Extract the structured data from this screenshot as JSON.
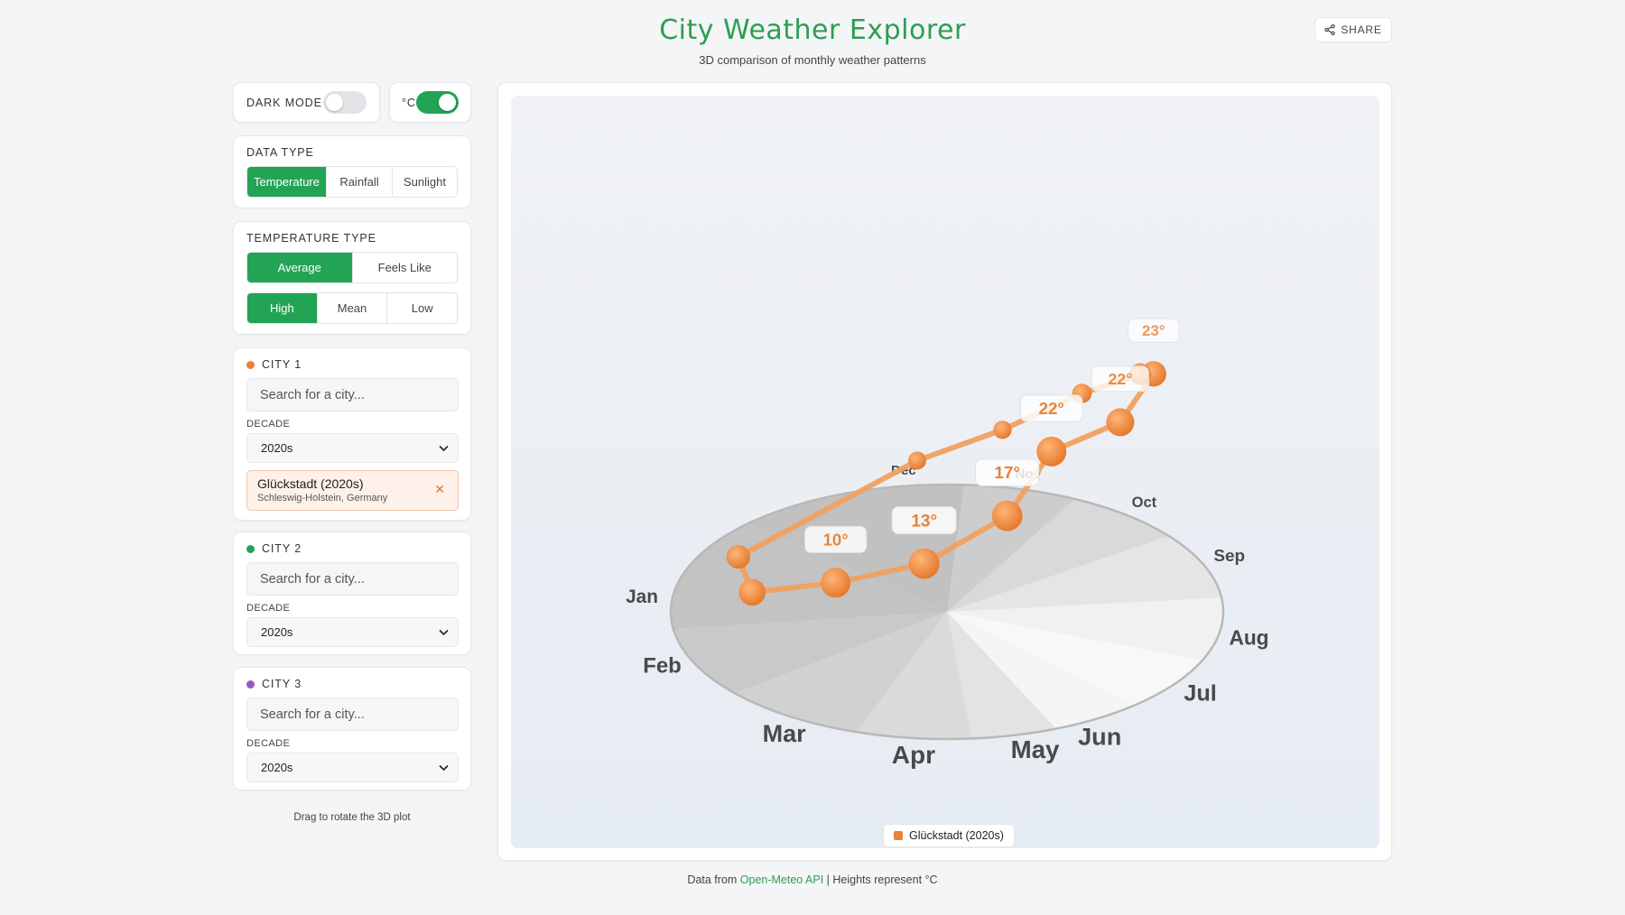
{
  "header": {
    "title": "City Weather Explorer",
    "subtitle": "3D comparison of monthly weather patterns",
    "share_label": "SHARE"
  },
  "controls": {
    "dark_mode_label": "DARK MODE",
    "dark_mode_on": false,
    "unit_label": "°C",
    "unit_celsius_on": true
  },
  "data_type": {
    "label": "DATA TYPE",
    "options": [
      "Temperature",
      "Rainfall",
      "Sunlight"
    ],
    "selected": "Temperature"
  },
  "temperature_type": {
    "label": "TEMPERATURE TYPE",
    "mode_options": [
      "Average",
      "Feels Like"
    ],
    "mode_selected": "Average",
    "level_options": [
      "High",
      "Mean",
      "Low"
    ],
    "level_selected": "High"
  },
  "cities": [
    {
      "label": "CITY 1",
      "color": "#e6823b",
      "search_placeholder": "Search for a city...",
      "decade_label": "DECADE",
      "decade": "2020s",
      "selected": {
        "name": "Glückstadt (2020s)",
        "region": "Schleswig-Holstein, Germany"
      }
    },
    {
      "label": "CITY 2",
      "color": "#23a455",
      "search_placeholder": "Search for a city...",
      "decade_label": "DECADE",
      "decade": "2020s"
    },
    {
      "label": "CITY 3",
      "color": "#9b59b6",
      "search_placeholder": "Search for a city...",
      "decade_label": "DECADE",
      "decade": "2020s"
    }
  ],
  "hint": "Drag to rotate the 3D plot",
  "footer": {
    "prefix": "Data from ",
    "link": "Open-Meteo API",
    "suffix": " | Heights represent °C"
  },
  "chart_data": {
    "type": "line",
    "projection": "3d-polar",
    "unit": "°C",
    "months": [
      "Jan",
      "Feb",
      "Mar",
      "Apr",
      "May",
      "Jun",
      "Jul",
      "Aug",
      "Sep",
      "Oct",
      "Nov",
      "Dec"
    ],
    "series": [
      {
        "name": "Glückstadt (2020s)",
        "color": "#e6823b",
        "values": [
          4,
          5,
          10,
          13,
          17,
          22,
          22,
          23,
          18,
          13,
          8,
          5
        ]
      }
    ],
    "value_labels": [
      "10°",
      "13°",
      "17°",
      "22°",
      "22°",
      "23°"
    ],
    "legend": "Glückstadt (2020s)"
  }
}
